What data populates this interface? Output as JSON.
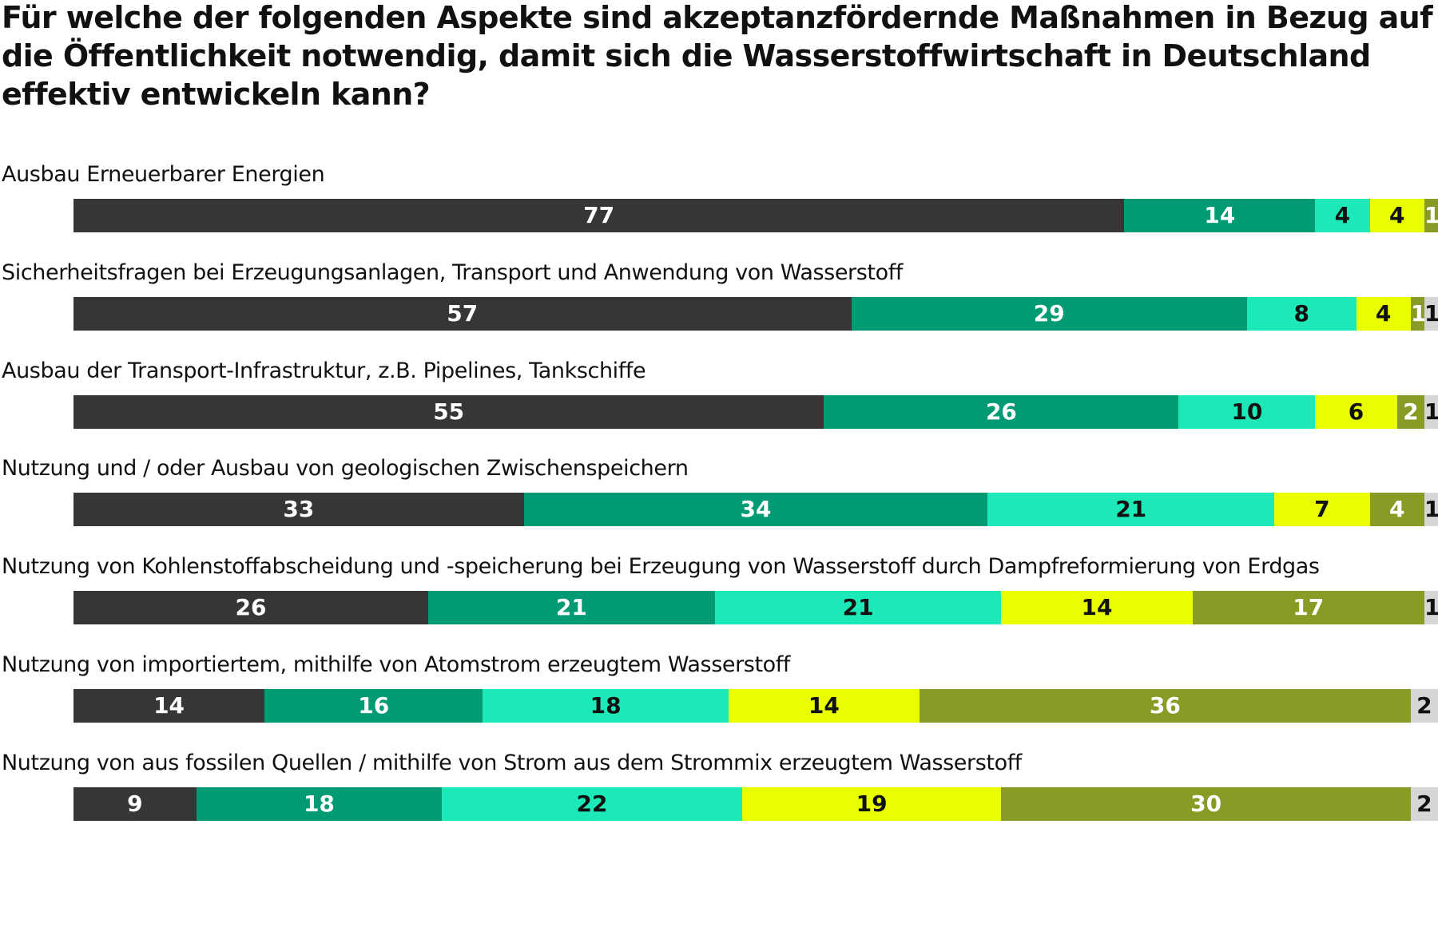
{
  "chart_data": {
    "type": "bar",
    "stacked": true,
    "orientation": "horizontal",
    "title_lines": [
      "Für welche der folgenden Aspekte sind akzeptanzfördernde Maßnahmen in Bezug auf",
      "die Öffentlichkeit notwendig, damit sich die Wasserstoffwirtschaft in Deutschland",
      "effektiv entwickeln kann?"
    ],
    "categories": [
      "Ausbau Erneuerbarer Energien",
      "Sicherheitsfragen bei Erzeugungsanlagen, Transport und Anwendung von Wasserstoff",
      "Ausbau der Transport-Infrastruktur, z.B. Pipelines, Tankschiffe",
      "Nutzung und / oder Ausbau von geologischen Zwischenspeichern",
      "Nutzung von Kohlenstoffabscheidung und -speicherung bei Erzeugung von Wasserstoff durch Dampfreformierung von Erdgas",
      "Nutzung von importiertem, mithilfe von Atomstrom erzeugtem Wasserstoff",
      "Nutzung von aus fossilen Quellen / mithilfe von Strom aus dem Strommix erzeugtem Wasserstoff"
    ],
    "series": [
      {
        "values": [
          77,
          57,
          55,
          33,
          26,
          14,
          9
        ],
        "color": "#363636",
        "label_color": "#ffffff"
      },
      {
        "values": [
          14,
          29,
          26,
          34,
          21,
          16,
          18
        ],
        "color": "#009a74",
        "label_color": "#ffffff"
      },
      {
        "values": [
          4,
          8,
          10,
          21,
          21,
          18,
          22
        ],
        "color": "#1de8b8",
        "label_color": "#111111"
      },
      {
        "values": [
          4,
          4,
          6,
          7,
          14,
          14,
          19
        ],
        "color": "#e9ff00",
        "label_color": "#111111"
      },
      {
        "values": [
          1,
          1,
          2,
          4,
          17,
          36,
          30
        ],
        "color": "#899a25",
        "label_color": "#ffffff"
      },
      {
        "values": [
          0,
          1,
          1,
          1,
          1,
          2,
          2
        ],
        "color": "#d6d6d6",
        "label_color": "#111111"
      }
    ],
    "xlim": [
      0,
      100
    ],
    "legend": "none"
  }
}
